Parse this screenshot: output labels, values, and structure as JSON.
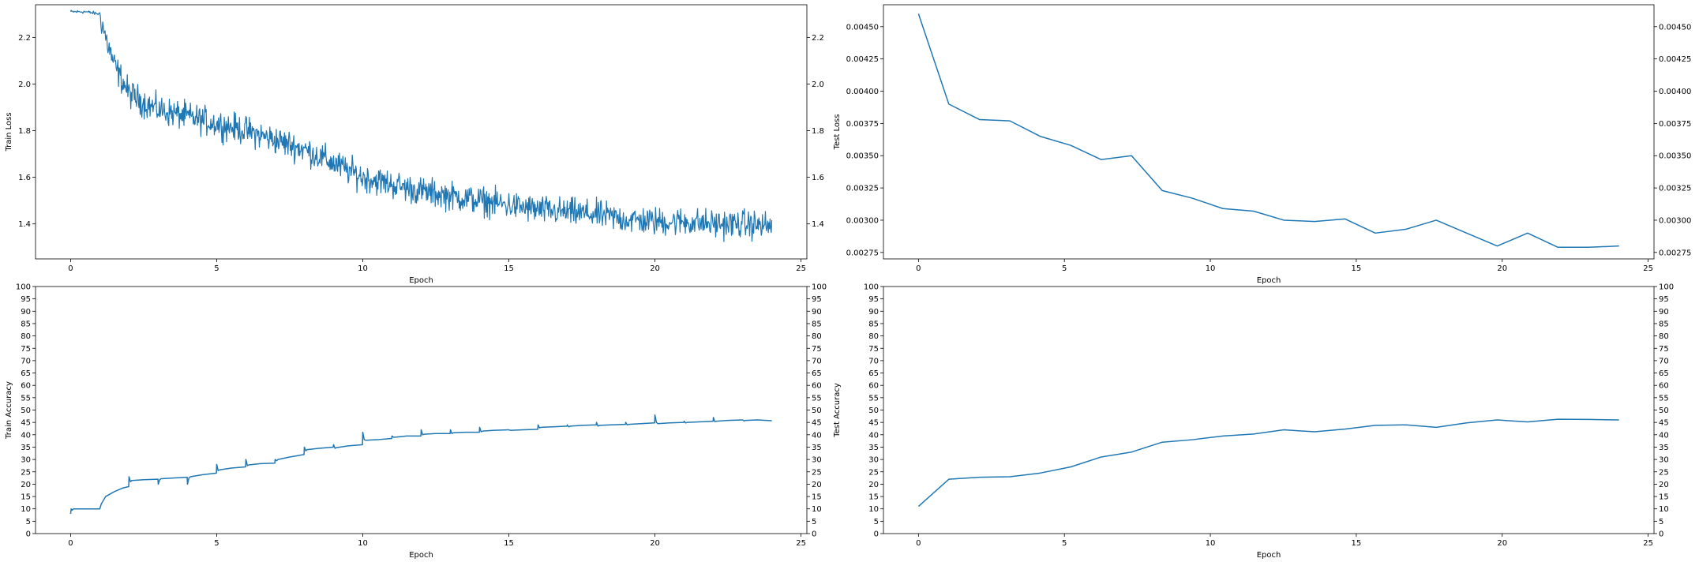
{
  "chart_data": [
    {
      "type": "line",
      "xlabel": "Epoch",
      "ylabel": "Train Loss",
      "xlim": [
        -1.2,
        25.2
      ],
      "ylim": [
        1.25,
        2.34
      ],
      "xticks": [
        0,
        5,
        10,
        15,
        20,
        25
      ],
      "yticks": [
        1.4,
        1.6,
        1.8,
        2.0,
        2.2
      ],
      "ytick_labels": [
        "1.4",
        "1.6",
        "1.8",
        "2.0",
        "2.2"
      ],
      "right_axis_ticks": true,
      "color": "#1f77b4",
      "noisy": true,
      "noise_amplitude": 0.06,
      "sample_count": 1200,
      "x": [
        0,
        0.5,
        1.0,
        1.2,
        1.5,
        2.0,
        2.5,
        3.0,
        4.0,
        5.0,
        6.0,
        7.0,
        8.0,
        9.0,
        10.0,
        11.0,
        12.0,
        13.0,
        14.0,
        15.0,
        16.0,
        17.0,
        18.0,
        19.0,
        20.0,
        21.0,
        22.0,
        23.0,
        24.0
      ],
      "y": [
        2.31,
        2.31,
        2.3,
        2.2,
        2.08,
        1.96,
        1.92,
        1.89,
        1.86,
        1.83,
        1.8,
        1.76,
        1.72,
        1.66,
        1.6,
        1.57,
        1.54,
        1.52,
        1.5,
        1.48,
        1.46,
        1.45,
        1.44,
        1.42,
        1.41,
        1.41,
        1.4,
        1.4,
        1.39
      ]
    },
    {
      "type": "line",
      "xlabel": "Epoch",
      "ylabel": "Test Loss",
      "xlim": [
        -1.2,
        25.2
      ],
      "ylim": [
        0.0027,
        0.00467
      ],
      "xticks": [
        0,
        5,
        10,
        15,
        20,
        25
      ],
      "yticks": [
        0.00275,
        0.003,
        0.00325,
        0.0035,
        0.00375,
        0.004,
        0.00425,
        0.0045
      ],
      "ytick_labels": [
        "0.00275",
        "0.00300",
        "0.00325",
        "0.00350",
        "0.00375",
        "0.00400",
        "0.00425",
        "0.00450"
      ],
      "right_axis_ticks": true,
      "color": "#1f77b4",
      "noisy": false,
      "x": [
        0,
        1.04,
        2.09,
        3.13,
        4.17,
        5.22,
        6.26,
        7.3,
        8.35,
        9.39,
        10.43,
        11.48,
        12.52,
        13.57,
        14.61,
        15.65,
        16.7,
        17.74,
        18.78,
        19.83,
        20.87,
        21.91,
        22.96,
        24.0
      ],
      "y": [
        0.0046,
        0.0039,
        0.00378,
        0.00377,
        0.00365,
        0.00358,
        0.00347,
        0.0035,
        0.00323,
        0.00317,
        0.00309,
        0.00307,
        0.003,
        0.00299,
        0.00301,
        0.0029,
        0.00293,
        0.003,
        0.0029,
        0.0028,
        0.0029,
        0.00279,
        0.00279,
        0.0028
      ]
    },
    {
      "type": "line",
      "xlabel": "Epoch",
      "ylabel": "Train Accuracy",
      "xlim": [
        -1.2,
        25.2
      ],
      "ylim": [
        0,
        100
      ],
      "xticks": [
        0,
        5,
        10,
        15,
        20,
        25
      ],
      "yticks": [
        0,
        5,
        10,
        15,
        20,
        25,
        30,
        35,
        40,
        45,
        50,
        55,
        60,
        65,
        70,
        75,
        80,
        85,
        90,
        95,
        100
      ],
      "ytick_labels": [
        "0",
        "5",
        "10",
        "15",
        "20",
        "25",
        "30",
        "35",
        "40",
        "45",
        "50",
        "55",
        "60",
        "65",
        "70",
        "75",
        "80",
        "85",
        "90",
        "95",
        "100"
      ],
      "right_axis_ticks": true,
      "color": "#1f77b4",
      "noisy": false,
      "x": [
        0,
        0.02,
        0.05,
        0.1,
        0.3,
        0.6,
        1.0,
        1.05,
        1.2,
        1.5,
        1.8,
        1.99,
        2.0,
        2.05,
        2.1,
        2.5,
        2.99,
        3.0,
        3.05,
        3.1,
        3.5,
        3.99,
        4.0,
        4.05,
        4.1,
        4.5,
        4.99,
        5.0,
        5.05,
        5.1,
        5.5,
        5.99,
        6.0,
        6.05,
        6.1,
        6.5,
        6.99,
        7.0,
        7.05,
        7.1,
        7.5,
        7.99,
        8.0,
        8.05,
        8.1,
        8.5,
        8.99,
        9.0,
        9.05,
        9.1,
        9.5,
        9.99,
        10.0,
        10.05,
        10.1,
        10.5,
        10.99,
        11.0,
        11.05,
        11.1,
        11.5,
        11.99,
        12.0,
        12.05,
        12.1,
        12.5,
        12.99,
        13.0,
        13.05,
        13.1,
        13.5,
        13.99,
        14.0,
        14.05,
        14.1,
        14.5,
        14.99,
        15.0,
        15.05,
        15.1,
        15.5,
        15.99,
        16.0,
        16.05,
        16.1,
        16.5,
        16.99,
        17.0,
        17.05,
        17.1,
        17.5,
        17.99,
        18.0,
        18.05,
        18.1,
        18.5,
        18.99,
        19.0,
        19.05,
        19.1,
        19.5,
        19.99,
        20.0,
        20.05,
        20.1,
        20.5,
        20.99,
        21.0,
        21.05,
        21.1,
        21.5,
        21.99,
        22.0,
        22.05,
        22.1,
        22.5,
        22.99,
        23.0,
        23.05,
        23.1,
        23.5,
        24.0
      ],
      "y": [
        8,
        10,
        9.5,
        10,
        10,
        10,
        10,
        12,
        15,
        17,
        18.5,
        19,
        23,
        21,
        21.5,
        21.8,
        22,
        20,
        21.8,
        22.2,
        22.5,
        22.8,
        20,
        22.5,
        23,
        23.8,
        24.5,
        28,
        25.5,
        25.8,
        26.5,
        27,
        30,
        27.5,
        27.8,
        28.3,
        28.5,
        30,
        29.5,
        30,
        31,
        32,
        35,
        33.5,
        34,
        34.5,
        35,
        36,
        34.5,
        34.8,
        35.5,
        36,
        41,
        38,
        37.8,
        38,
        38.5,
        39.5,
        39,
        39,
        39.5,
        39.5,
        42,
        40,
        40.2,
        40.5,
        40.5,
        42,
        40.5,
        40.8,
        41,
        41,
        43,
        41.2,
        41.5,
        41.8,
        42,
        42,
        41.8,
        41.8,
        42,
        42.2,
        44,
        42.8,
        43,
        43.2,
        43.5,
        44,
        43.2,
        43.5,
        43.8,
        44,
        45,
        43.5,
        43.8,
        44,
        44.2,
        45,
        44,
        44.2,
        44.5,
        44.8,
        48,
        45,
        44.5,
        44.8,
        45,
        45.5,
        44.8,
        45,
        45.2,
        45.5,
        47,
        45.3,
        45.5,
        45.8,
        46,
        46,
        45.6,
        45.8,
        46,
        45.7
      ]
    },
    {
      "type": "line",
      "xlabel": "Epoch",
      "ylabel": "Test Accuracy",
      "xlim": [
        -1.2,
        25.2
      ],
      "ylim": [
        0,
        100
      ],
      "xticks": [
        0,
        5,
        10,
        15,
        20,
        25
      ],
      "yticks": [
        0,
        5,
        10,
        15,
        20,
        25,
        30,
        35,
        40,
        45,
        50,
        55,
        60,
        65,
        70,
        75,
        80,
        85,
        90,
        95,
        100
      ],
      "ytick_labels": [
        "0",
        "5",
        "10",
        "15",
        "20",
        "25",
        "30",
        "35",
        "40",
        "45",
        "50",
        "55",
        "60",
        "65",
        "70",
        "75",
        "80",
        "85",
        "90",
        "95",
        "100"
      ],
      "right_axis_ticks": true,
      "color": "#1f77b4",
      "noisy": false,
      "x": [
        0,
        1.04,
        2.09,
        3.13,
        4.17,
        5.22,
        6.26,
        7.3,
        8.35,
        9.39,
        10.43,
        11.48,
        12.52,
        13.57,
        14.61,
        15.65,
        16.7,
        17.74,
        18.78,
        19.83,
        20.87,
        21.91,
        22.96,
        24.0
      ],
      "y": [
        11,
        22,
        22.8,
        23,
        24.5,
        27,
        31,
        33,
        37,
        38,
        39.5,
        40.3,
        42,
        41.2,
        42.3,
        43.8,
        44,
        43,
        44.8,
        46,
        45.2,
        46.3,
        46.2,
        46
      ]
    }
  ]
}
